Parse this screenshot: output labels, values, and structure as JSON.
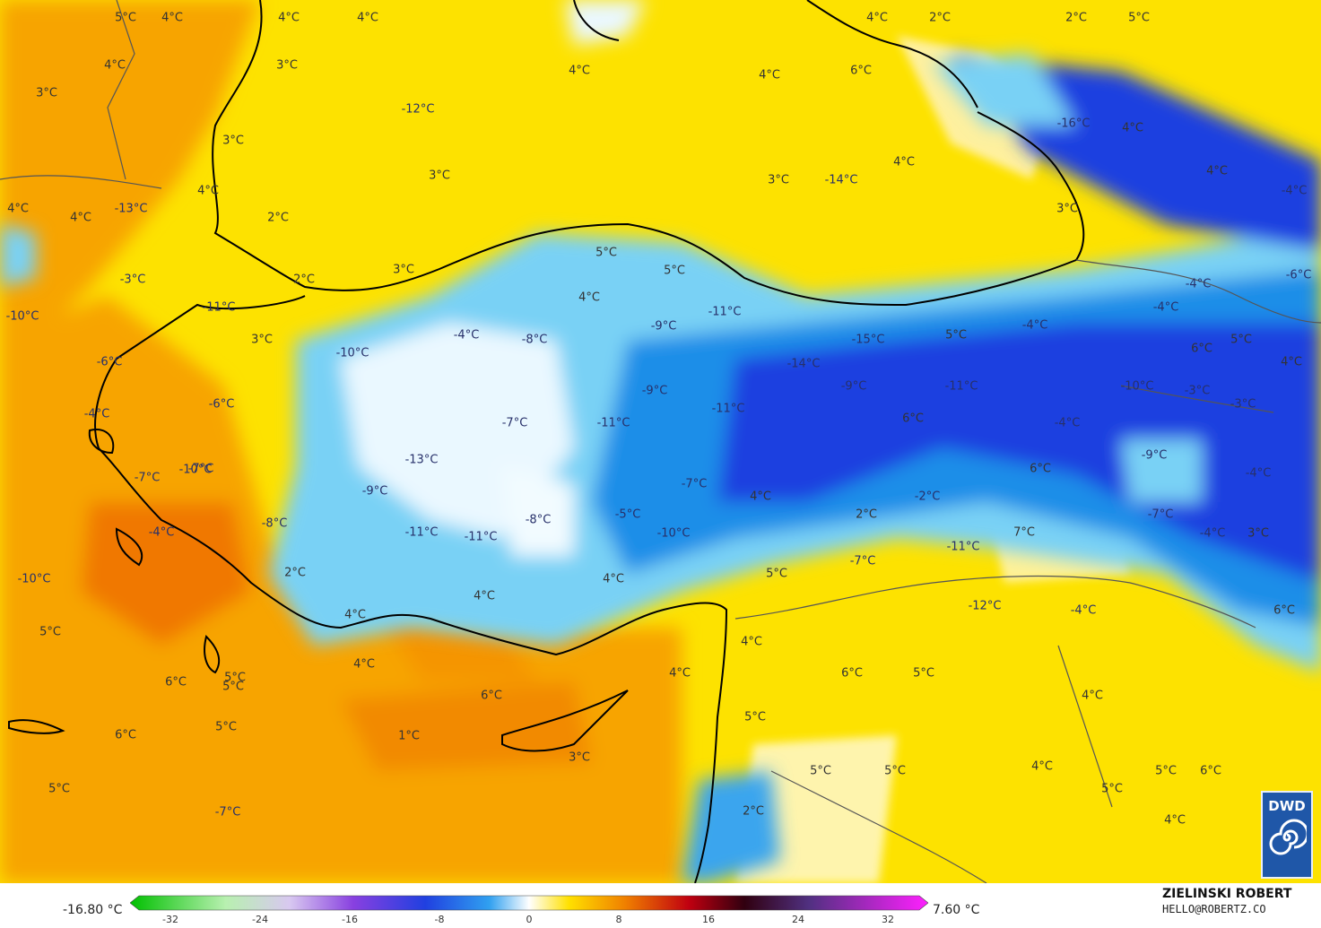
{
  "legend": {
    "min_label": "-16.80 °C",
    "max_label": "7.60 °C",
    "ticks": [
      "-32",
      "-24",
      "-16",
      "-8",
      "0",
      "8",
      "16",
      "24",
      "32"
    ]
  },
  "credits": {
    "author": "ZIELINSKI ROBERT",
    "email": "HELLO@ROBERTZ.CO"
  },
  "logo": {
    "text": "DWD",
    "icon": "dwd-spiral-icon"
  },
  "colors": {
    "warm_orange": "#f7a400",
    "yellow": "#fde200",
    "light_blue": "#79d1f5",
    "blue": "#1c8ee8",
    "deep_blue": "#1e3fe0",
    "white": "#f2fbff"
  },
  "labels": [
    {
      "t": "5°C"
    },
    {
      "t": "4°C"
    },
    {
      "t": "4°C"
    },
    {
      "t": "4°C"
    },
    {
      "t": "4°C"
    },
    {
      "t": "2°C"
    },
    {
      "t": "2°C"
    },
    {
      "t": "5°C"
    },
    {
      "t": "4°C"
    },
    {
      "t": "3°C"
    },
    {
      "t": "4°C"
    },
    {
      "t": "4°C"
    },
    {
      "t": "6°C"
    },
    {
      "t": "3°C"
    },
    {
      "t": "-12°C"
    },
    {
      "t": "-16°C"
    },
    {
      "t": "4°C"
    },
    {
      "t": "3°C"
    },
    {
      "t": "3°C"
    },
    {
      "t": "4°C"
    },
    {
      "t": "3°C"
    },
    {
      "t": "-14°C"
    },
    {
      "t": "4°C"
    },
    {
      "t": "4°C"
    },
    {
      "t": "4°C"
    },
    {
      "t": "4°C"
    },
    {
      "t": "-13°C"
    },
    {
      "t": "2°C"
    },
    {
      "t": "-4°C"
    },
    {
      "t": "3°C"
    },
    {
      "t": "5°C"
    },
    {
      "t": "3°C"
    },
    {
      "t": "-3°C"
    },
    {
      "t": "2°C"
    },
    {
      "t": "5°C"
    },
    {
      "t": "-6°C"
    },
    {
      "t": "-10°C"
    },
    {
      "t": "4°C"
    },
    {
      "t": "-4°C"
    },
    {
      "t": "-11°C"
    },
    {
      "t": "-11°C"
    },
    {
      "t": "-4°C"
    },
    {
      "t": "-4°C"
    },
    {
      "t": "-4°C"
    },
    {
      "t": "-8°C"
    },
    {
      "t": "-9°C"
    },
    {
      "t": "-15°C"
    },
    {
      "t": "5°C"
    },
    {
      "t": "5°C"
    },
    {
      "t": "3°C"
    },
    {
      "t": "-6°C"
    },
    {
      "t": "-10°C"
    },
    {
      "t": "-14°C"
    },
    {
      "t": "6°C"
    },
    {
      "t": "4°C"
    },
    {
      "t": "-4°C"
    },
    {
      "t": "-6°C"
    },
    {
      "t": "-9°C"
    },
    {
      "t": "-9°C"
    },
    {
      "t": "-11°C"
    },
    {
      "t": "-10°C"
    },
    {
      "t": "-3°C"
    },
    {
      "t": "-3°C"
    },
    {
      "t": "-7°C"
    },
    {
      "t": "-11°C"
    },
    {
      "t": "-11°C"
    },
    {
      "t": "6°C"
    },
    {
      "t": "-4°C"
    },
    {
      "t": "-7°C"
    },
    {
      "t": "-13°C"
    },
    {
      "t": "-7°C"
    },
    {
      "t": "-9°C"
    },
    {
      "t": "6°C"
    },
    {
      "t": "-4°C"
    },
    {
      "t": "-10°C"
    },
    {
      "t": "-9°C"
    },
    {
      "t": "-7°C"
    },
    {
      "t": "4°C"
    },
    {
      "t": "-2°C"
    },
    {
      "t": "-8°C"
    },
    {
      "t": "-8°C"
    },
    {
      "t": "-5°C"
    },
    {
      "t": "2°C"
    },
    {
      "t": "-11°C"
    },
    {
      "t": "7°C"
    },
    {
      "t": "-7°C"
    },
    {
      "t": "-4°C"
    },
    {
      "t": "-11°C"
    },
    {
      "t": "-11°C"
    },
    {
      "t": "-10°C"
    },
    {
      "t": "-4°C"
    },
    {
      "t": "3°C"
    },
    {
      "t": "2°C"
    },
    {
      "t": "5°C"
    },
    {
      "t": "-7°C"
    },
    {
      "t": "-10°C"
    },
    {
      "t": "4°C"
    },
    {
      "t": "4°C"
    },
    {
      "t": "-12°C"
    },
    {
      "t": "-4°C"
    },
    {
      "t": "6°C"
    },
    {
      "t": "4°C"
    },
    {
      "t": "5°C"
    },
    {
      "t": "4°C"
    },
    {
      "t": "4°C"
    },
    {
      "t": "4°C"
    },
    {
      "t": "6°C"
    },
    {
      "t": "5°C"
    },
    {
      "t": "6°C"
    },
    {
      "t": "5°C"
    },
    {
      "t": "6°C"
    },
    {
      "t": "4°C"
    },
    {
      "t": "5°C"
    },
    {
      "t": "5°C"
    },
    {
      "t": "6°C"
    },
    {
      "t": "5°C"
    },
    {
      "t": "1°C"
    },
    {
      "t": "3°C"
    },
    {
      "t": "5°C"
    },
    {
      "t": "5°C"
    },
    {
      "t": "4°C"
    },
    {
      "t": "5°C"
    },
    {
      "t": "6°C"
    },
    {
      "t": "5°C"
    },
    {
      "t": "-7°C"
    },
    {
      "t": "5°C"
    },
    {
      "t": "2°C"
    },
    {
      "t": "4°C"
    }
  ]
}
